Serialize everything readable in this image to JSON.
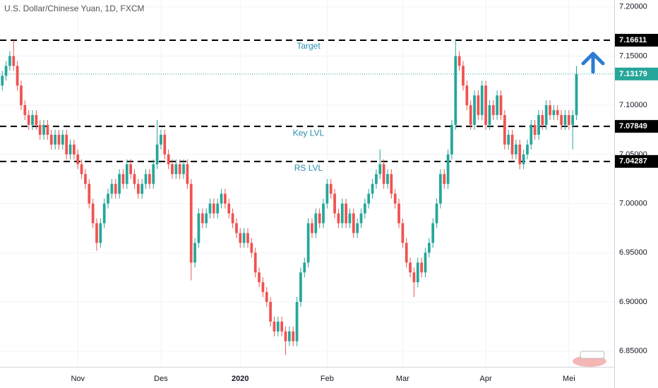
{
  "chart_data": {
    "type": "candlestick",
    "title": "U.S. Dollar/Chinese Yuan, 1D, FXCM",
    "open": [
      7.12,
      7.13,
      7.14,
      7.15,
      7.14,
      7.12,
      7.1,
      7.09,
      7.08,
      7.09,
      7.08,
      7.07,
      7.08,
      7.07,
      7.06,
      7.07,
      7.06,
      7.07,
      7.05,
      7.06,
      7.05,
      7.04,
      7.03,
      7.02,
      7.0,
      6.98,
      6.96,
      6.98,
      7.0,
      7.01,
      7.02,
      7.01,
      7.03,
      7.02,
      7.04,
      7.03,
      7.02,
      7.01,
      7.02,
      7.03,
      7.02,
      7.04,
      7.06,
      7.07,
      7.05,
      7.04,
      7.03,
      7.04,
      7.03,
      7.04,
      7.02,
      6.94,
      6.96,
      6.99,
      6.98,
      6.99,
      7.0,
      6.99,
      7.0,
      7.01,
      7.0,
      6.99,
      6.98,
      6.97,
      6.96,
      6.97,
      6.96,
      6.95,
      6.93,
      6.92,
      6.91,
      6.9,
      6.88,
      6.87,
      6.88,
      6.87,
      6.86,
      6.87,
      6.86,
      6.9,
      6.93,
      6.94,
      6.98,
      6.97,
      6.99,
      6.98,
      7.0,
      7.02,
      7.01,
      6.99,
      6.98,
      7.0,
      6.98,
      6.99,
      6.97,
      6.98,
      6.99,
      7.0,
      7.01,
      7.02,
      7.03,
      7.04,
      7.02,
      7.03,
      7.01,
      7.0,
      6.98,
      6.96,
      6.94,
      6.93,
      6.92,
      6.94,
      6.93,
      6.95,
      6.96,
      6.98,
      7.0,
      7.03,
      7.02,
      7.05,
      7.08,
      7.15,
      7.14,
      7.12,
      7.1,
      7.08,
      7.11,
      7.09,
      7.12,
      7.08,
      7.1,
      7.09,
      7.11,
      7.09,
      7.06,
      7.07,
      7.05,
      7.06,
      7.04,
      7.05,
      7.06,
      7.08,
      7.07,
      7.09,
      7.08,
      7.1,
      7.09,
      7.095,
      7.09,
      7.08,
      7.09,
      7.08,
      7.09
    ],
    "high": [
      7.135,
      7.145,
      7.155,
      7.166,
      7.145,
      7.125,
      7.105,
      7.095,
      7.095,
      7.095,
      7.085,
      7.085,
      7.085,
      7.075,
      7.075,
      7.075,
      7.075,
      7.075,
      7.065,
      7.065,
      7.055,
      7.045,
      7.035,
      7.025,
      7.005,
      6.985,
      6.985,
      7.005,
      7.015,
      7.025,
      7.025,
      7.035,
      7.035,
      7.045,
      7.045,
      7.035,
      7.025,
      7.025,
      7.035,
      7.035,
      7.045,
      7.085,
      7.075,
      7.075,
      7.055,
      7.045,
      7.045,
      7.045,
      7.045,
      7.045,
      7.025,
      6.965,
      6.995,
      6.995,
      6.995,
      7.005,
      7.005,
      7.005,
      7.015,
      7.015,
      7.005,
      6.995,
      6.985,
      6.975,
      6.975,
      6.975,
      6.965,
      6.955,
      6.935,
      6.925,
      6.915,
      6.905,
      6.885,
      6.885,
      6.885,
      6.875,
      6.875,
      6.875,
      6.905,
      6.935,
      6.945,
      6.985,
      6.985,
      6.995,
      6.995,
      7.005,
      7.025,
      7.025,
      7.015,
      6.995,
      7.005,
      7.005,
      6.995,
      6.995,
      6.985,
      6.995,
      7.005,
      7.015,
      7.025,
      7.035,
      7.055,
      7.045,
      7.035,
      7.035,
      7.015,
      7.005,
      6.985,
      6.965,
      6.945,
      6.935,
      6.945,
      6.945,
      6.955,
      6.965,
      6.985,
      7.005,
      7.035,
      7.035,
      7.055,
      7.085,
      7.166,
      7.155,
      7.145,
      7.125,
      7.105,
      7.115,
      7.115,
      7.125,
      7.125,
      7.105,
      7.105,
      7.115,
      7.115,
      7.095,
      7.075,
      7.075,
      7.065,
      7.065,
      7.055,
      7.065,
      7.085,
      7.085,
      7.095,
      7.095,
      7.105,
      7.105,
      7.1,
      7.1,
      7.095,
      7.095,
      7.095,
      7.095,
      7.14
    ],
    "low": [
      7.115,
      7.125,
      7.135,
      7.135,
      7.115,
      7.095,
      7.085,
      7.075,
      7.075,
      7.075,
      7.065,
      7.065,
      7.065,
      7.055,
      7.055,
      7.055,
      7.055,
      7.045,
      7.045,
      7.045,
      7.035,
      7.025,
      7.015,
      6.995,
      6.975,
      6.952,
      6.955,
      6.975,
      6.995,
      7.005,
      7.005,
      7.005,
      7.015,
      7.015,
      7.025,
      7.015,
      7.005,
      7.005,
      7.015,
      7.015,
      7.015,
      7.035,
      7.055,
      7.045,
      7.035,
      7.025,
      7.025,
      7.025,
      7.025,
      7.015,
      6.922,
      6.935,
      6.955,
      6.975,
      6.975,
      6.985,
      6.985,
      6.985,
      6.995,
      6.995,
      6.985,
      6.975,
      6.965,
      6.955,
      6.955,
      6.955,
      6.945,
      6.925,
      6.915,
      6.905,
      6.895,
      6.875,
      6.865,
      6.865,
      6.865,
      6.846,
      6.855,
      6.855,
      6.855,
      6.895,
      6.925,
      6.935,
      6.965,
      6.965,
      6.975,
      6.975,
      6.995,
      7.005,
      6.985,
      6.975,
      6.975,
      6.975,
      6.975,
      6.965,
      6.965,
      6.975,
      6.985,
      6.995,
      7.005,
      7.015,
      7.025,
      7.015,
      7.015,
      7.005,
      6.995,
      6.975,
      6.955,
      6.935,
      6.925,
      6.905,
      6.915,
      6.925,
      6.925,
      6.945,
      6.955,
      6.975,
      6.995,
      7.015,
      7.015,
      7.045,
      7.075,
      7.135,
      7.115,
      7.095,
      7.075,
      7.075,
      7.085,
      7.085,
      7.075,
      7.075,
      7.085,
      7.085,
      7.085,
      7.055,
      7.055,
      7.045,
      7.045,
      7.035,
      7.035,
      7.045,
      7.055,
      7.065,
      7.065,
      7.075,
      7.075,
      7.085,
      7.085,
      7.085,
      7.075,
      7.075,
      7.075,
      7.055,
      7.085
    ],
    "close": [
      7.13,
      7.14,
      7.15,
      7.14,
      7.12,
      7.1,
      7.09,
      7.08,
      7.09,
      7.08,
      7.07,
      7.08,
      7.07,
      7.06,
      7.07,
      7.06,
      7.07,
      7.05,
      7.06,
      7.05,
      7.04,
      7.03,
      7.02,
      7.0,
      6.98,
      6.96,
      6.98,
      7.0,
      7.01,
      7.02,
      7.01,
      7.03,
      7.02,
      7.04,
      7.03,
      7.02,
      7.01,
      7.02,
      7.03,
      7.02,
      7.04,
      7.06,
      7.07,
      7.05,
      7.04,
      7.03,
      7.04,
      7.03,
      7.04,
      7.02,
      6.94,
      6.96,
      6.99,
      6.98,
      6.99,
      7.0,
      6.99,
      7.0,
      7.01,
      7.0,
      6.99,
      6.98,
      6.97,
      6.96,
      6.97,
      6.96,
      6.95,
      6.93,
      6.92,
      6.91,
      6.9,
      6.88,
      6.87,
      6.88,
      6.87,
      6.86,
      6.87,
      6.86,
      6.9,
      6.93,
      6.94,
      6.98,
      6.97,
      6.99,
      6.98,
      7.0,
      7.02,
      7.01,
      6.99,
      6.98,
      7.0,
      6.98,
      6.99,
      6.97,
      6.98,
      6.99,
      7.0,
      7.01,
      7.02,
      7.03,
      7.04,
      7.02,
      7.03,
      7.01,
      7.0,
      6.98,
      6.96,
      6.94,
      6.93,
      6.92,
      6.94,
      6.93,
      6.95,
      6.96,
      6.98,
      7.0,
      7.03,
      7.02,
      7.05,
      7.08,
      7.15,
      7.14,
      7.12,
      7.1,
      7.08,
      7.11,
      7.09,
      7.12,
      7.08,
      7.1,
      7.09,
      7.11,
      7.09,
      7.06,
      7.07,
      7.05,
      7.06,
      7.04,
      7.05,
      7.06,
      7.08,
      7.07,
      7.09,
      7.08,
      7.1,
      7.09,
      7.095,
      7.09,
      7.08,
      7.09,
      7.08,
      7.09,
      7.13179
    ],
    "up_color": "#26a69a",
    "down_color": "#ef5350",
    "levels": [
      {
        "name": "Target",
        "value": 7.16611
      },
      {
        "name": "Key LVL",
        "value": 7.07849
      },
      {
        "name": "RS LVL",
        "value": 7.04287
      }
    ],
    "xlim": [
      -0.6,
      162
    ],
    "xticks": [
      {
        "value": 20,
        "label": "Nov"
      },
      {
        "value": 42,
        "label": "Des"
      },
      {
        "value": 63,
        "label": "2020"
      },
      {
        "value": 86,
        "label": "Feb"
      },
      {
        "value": 106,
        "label": "Mar"
      },
      {
        "value": 128,
        "label": "Apr"
      },
      {
        "value": 150,
        "label": "Mei"
      }
    ],
    "ylim": [
      6.834,
      7.207
    ],
    "yticks": [
      {
        "value": 6.85,
        "label": "6.85000"
      },
      {
        "value": 6.9,
        "label": "6.90000"
      },
      {
        "value": 6.95,
        "label": "6.95000"
      },
      {
        "value": 7.0,
        "label": "7.00000"
      },
      {
        "value": 7.05,
        "label": "7.05000"
      },
      {
        "value": 7.1,
        "label": "7.10000"
      },
      {
        "value": 7.15,
        "label": "7.15000"
      },
      {
        "value": 7.2,
        "label": "7.20000"
      }
    ],
    "grid": true
  }
}
